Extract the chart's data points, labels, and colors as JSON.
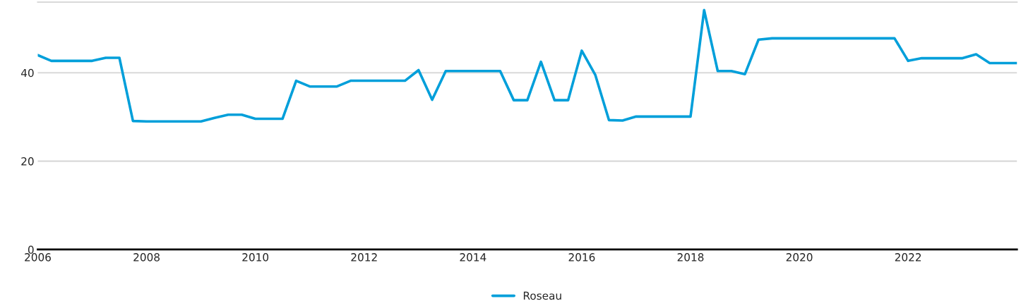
{
  "chart_data": {
    "type": "line",
    "x": [
      2006,
      2006.25,
      2006.5,
      2006.75,
      2007,
      2007.25,
      2007.5,
      2007.75,
      2008,
      2008.25,
      2008.5,
      2008.75,
      2009,
      2009.25,
      2009.5,
      2009.75,
      2010,
      2010.25,
      2010.5,
      2010.75,
      2011,
      2011.25,
      2011.5,
      2011.75,
      2012,
      2012.25,
      2012.5,
      2012.75,
      2013,
      2013.25,
      2013.5,
      2013.75,
      2014,
      2014.25,
      2014.5,
      2014.75,
      2015,
      2015.25,
      2015.5,
      2015.75,
      2016,
      2016.25,
      2016.5,
      2016.75,
      2017,
      2017.25,
      2017.5,
      2017.75,
      2018,
      2018.25,
      2018.5,
      2018.75,
      2019,
      2019.25,
      2019.5,
      2019.75,
      2020,
      2020.25,
      2020.5,
      2020.75,
      2021,
      2021.25,
      2021.5,
      2021.75,
      2022,
      2022.25,
      2022.5,
      2022.75,
      2023,
      2023.25,
      2023.5,
      2023.75,
      2024
    ],
    "series": [
      {
        "name": "Roseau",
        "color": "#009fda",
        "values": [
          44.0,
          42.7,
          42.7,
          42.7,
          42.7,
          43.4,
          43.4,
          29.1,
          29.0,
          29.0,
          29.0,
          29.0,
          29.0,
          29.8,
          30.5,
          30.5,
          29.6,
          29.6,
          29.6,
          38.2,
          36.9,
          36.9,
          36.9,
          38.2,
          38.2,
          38.2,
          38.2,
          38.2,
          40.6,
          33.9,
          40.4,
          40.4,
          40.4,
          40.4,
          40.4,
          33.8,
          33.8,
          42.5,
          33.8,
          33.8,
          45.0,
          39.5,
          29.3,
          29.2,
          30.1,
          30.1,
          30.1,
          30.1,
          30.1,
          54.2,
          40.4,
          40.4,
          39.7,
          47.5,
          47.8,
          47.8,
          47.8,
          47.8,
          47.8,
          47.8,
          47.8,
          47.8,
          47.8,
          47.8,
          42.7,
          43.3,
          43.3,
          43.3,
          43.3,
          44.2,
          42.2,
          42.2,
          42.2
        ]
      }
    ],
    "xlim": [
      2006,
      2024
    ],
    "xticks": [
      2006,
      2008,
      2010,
      2012,
      2014,
      2016,
      2018,
      2020,
      2022
    ],
    "ylim": [
      0,
      56
    ],
    "yticks": [
      0,
      20,
      40
    ],
    "grid": "y",
    "legend": "bottom",
    "marker": "none",
    "line_style": "solid"
  }
}
